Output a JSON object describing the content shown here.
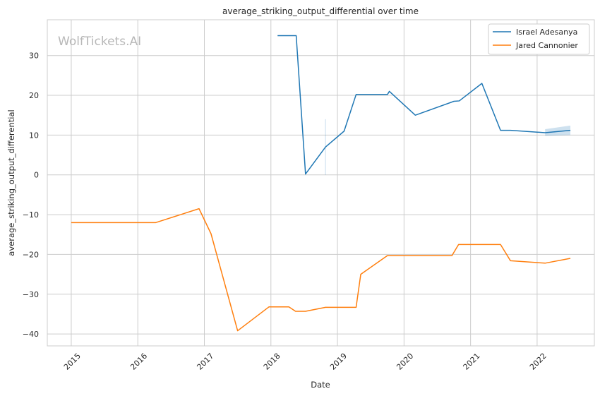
{
  "chart_data": {
    "type": "line",
    "title": "average_striking_output_differential over time",
    "xlabel": "Date",
    "ylabel": "average_striking_output_differential",
    "watermark": "WolfTickets.AI",
    "xlim": [
      2014.64,
      2022.86
    ],
    "ylim": [
      -43,
      39
    ],
    "xticks": [
      2015,
      2016,
      2017,
      2018,
      2019,
      2020,
      2021,
      2022
    ],
    "xtick_labels": [
      "2015",
      "2016",
      "2017",
      "2018",
      "2019",
      "2020",
      "2021",
      "2022"
    ],
    "yticks": [
      -40,
      -30,
      -20,
      -10,
      0,
      10,
      20,
      30
    ],
    "ytick_labels": [
      "−40",
      "−30",
      "−20",
      "−10",
      "0",
      "10",
      "20",
      "30"
    ],
    "grid": true,
    "legend_position": "top-right",
    "series": [
      {
        "name": "Israel Adesanya",
        "color": "#1f77b4",
        "x": [
          2018.1,
          2018.38,
          2018.52,
          2018.82,
          2019.1,
          2019.28,
          2019.55,
          2019.75,
          2019.78,
          2020.17,
          2020.75,
          2020.83,
          2021.17,
          2021.45,
          2021.6,
          2022.12,
          2022.5
        ],
        "y": [
          35.0,
          35.0,
          0.2,
          7.0,
          11.0,
          20.2,
          20.2,
          20.2,
          21.0,
          15.0,
          18.5,
          18.6,
          23.0,
          11.2,
          11.2,
          10.6,
          11.2
        ],
        "band": {
          "x": [
            2022.12,
            2022.5
          ],
          "upper": [
            11.5,
            12.4
          ],
          "lower": [
            9.8,
            10.0
          ]
        },
        "vline": {
          "x": 2018.82,
          "y": [
            0,
            14
          ]
        }
      },
      {
        "name": "Jared Cannonier",
        "color": "#ff7f0e",
        "x": [
          2015.0,
          2016.27,
          2016.92,
          2017.1,
          2017.5,
          2017.97,
          2018.27,
          2018.37,
          2018.52,
          2018.82,
          2019.28,
          2019.35,
          2019.75,
          2020.72,
          2020.82,
          2021.45,
          2021.6,
          2022.12,
          2022.5
        ],
        "y": [
          -12.0,
          -12.0,
          -8.5,
          -14.8,
          -39.2,
          -33.2,
          -33.2,
          -34.3,
          -34.3,
          -33.3,
          -33.3,
          -25.0,
          -20.3,
          -20.3,
          -17.5,
          -17.5,
          -21.6,
          -22.2,
          -21.0
        ]
      }
    ]
  }
}
